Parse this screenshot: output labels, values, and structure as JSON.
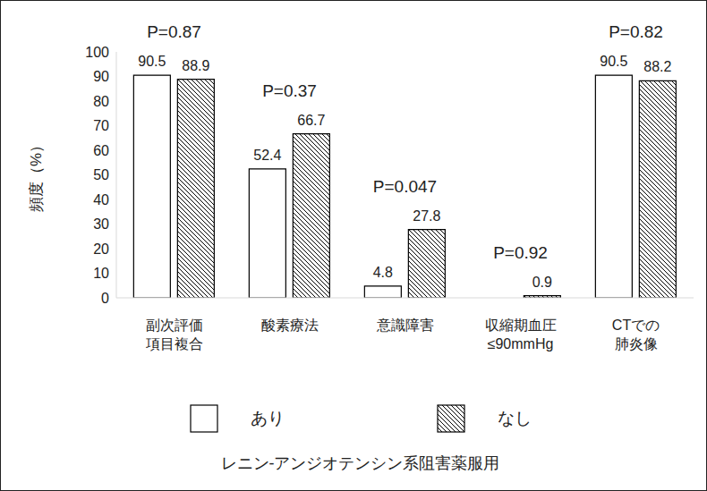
{
  "chart_data": {
    "type": "bar",
    "y_label": "頻度（%）",
    "categories": [
      "副次評価\n項目複合",
      "酸素療法",
      "意識障害",
      "収縮期血圧\n≤90mmHg",
      "CTでの\n肺炎像"
    ],
    "series": [
      {
        "name": "あり",
        "color": "#ffffff",
        "values": [
          90.5,
          52.4,
          4.8,
          0,
          90.5
        ]
      },
      {
        "name": "なし",
        "color": "#000000",
        "values": [
          88.9,
          66.7,
          27.8,
          0.9,
          88.2
        ]
      }
    ],
    "annotations": [
      "P=0.87",
      "P=0.37",
      "P=0.047",
      "P=0.92",
      "P=0.82"
    ],
    "legend_title": "レニン-アンジオテンシン系阻害薬服用",
    "legend": "bottom",
    "ylim": [
      0,
      100
    ],
    "yticks": [
      0,
      10,
      20,
      30,
      40,
      50,
      60,
      70,
      80,
      90,
      100
    ],
    "grid": false,
    "data_labels": true
  }
}
